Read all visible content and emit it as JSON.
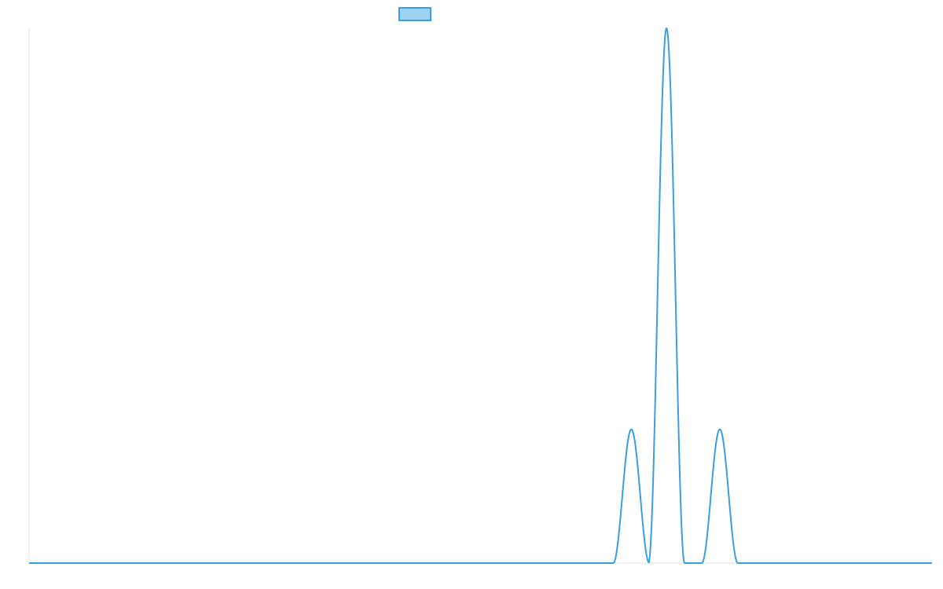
{
  "chart_data": {
    "type": "line",
    "title": "",
    "xlabel": "",
    "ylabel": "",
    "grid": false,
    "legend": "top-center",
    "ylim": [
      0,
      1
    ],
    "xlim": [
      0,
      100
    ],
    "series": [
      {
        "name": "",
        "color": "#3a9fe0",
        "fill_color": "#9fd2f5",
        "peaks": [
          {
            "center": 66.7,
            "half_width": 2.0,
            "height": 0.25
          },
          {
            "center": 70.6,
            "half_width": 2.0,
            "height": 1.0
          },
          {
            "center": 76.5,
            "half_width": 2.0,
            "height": 0.25
          }
        ]
      }
    ]
  }
}
